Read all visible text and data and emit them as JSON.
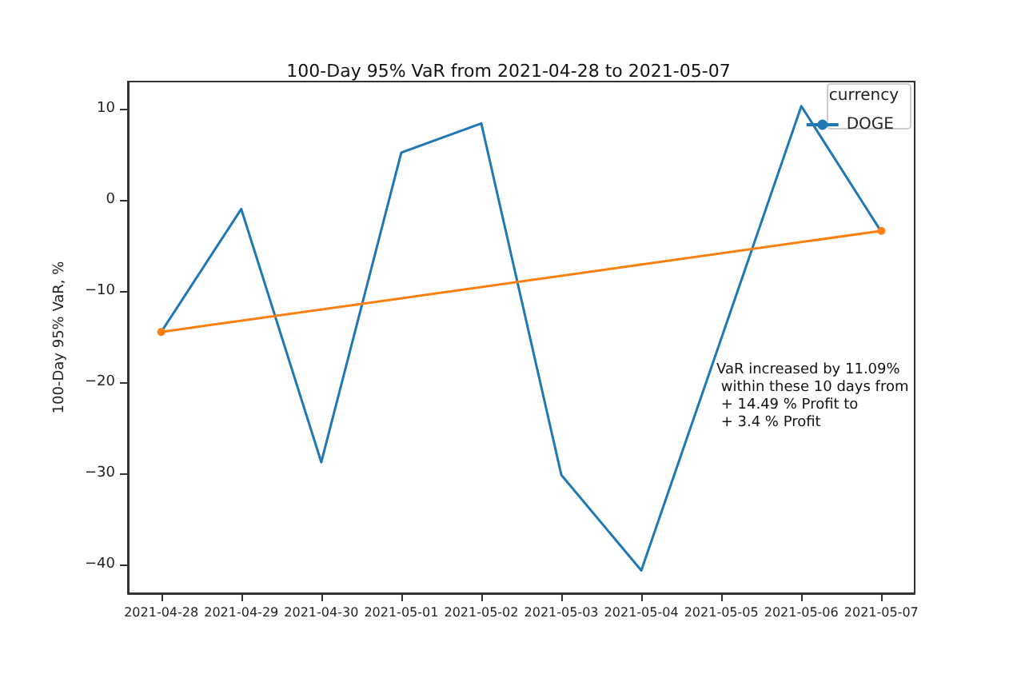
{
  "chart_data": {
    "type": "line",
    "title": "100-Day 95% VaR from 2021-04-28 to 2021-05-07",
    "ylabel": "100-Day 95% VaR, %",
    "legend_title": "currency",
    "x": [
      "2021-04-28",
      "2021-04-29",
      "2021-04-30",
      "2021-05-01",
      "2021-05-02",
      "2021-05-03",
      "2021-05-04",
      "2021-05-05",
      "2021-05-06",
      "2021-05-07"
    ],
    "xlim": [
      "2021-04-27T14:00",
      "2021-05-07T10:00"
    ],
    "xticks": [
      "2021-04-28",
      "2021-04-29",
      "2021-04-30",
      "2021-05-01",
      "2021-05-02",
      "2021-05-03",
      "2021-05-04",
      "2021-05-05",
      "2021-05-06",
      "2021-05-07"
    ],
    "series": [
      {
        "name": "DOGE",
        "color": "#1f77b4",
        "marker": "none",
        "values": [
          -14.5,
          -1,
          -28.8,
          5.2,
          8.4,
          -30.2,
          -40.7,
          -15.2,
          10.3,
          -3.5
        ]
      },
      {
        "color": "#ff7f0e",
        "marker": "circle",
        "x": [
          "2021-04-28",
          "2021-05-07"
        ],
        "values": [
          -14.5,
          -3.4
        ]
      }
    ],
    "ylim": [
      -43.2,
      13
    ],
    "yticks": [
      -40,
      -30,
      -20,
      -10,
      0,
      10
    ],
    "grid": false,
    "legend": "top right",
    "annotations": [
      "VaR increased by 11.09%\n within these 10 days from\n + 14.49 % Profit to\n + 3.4 % Profit"
    ]
  }
}
